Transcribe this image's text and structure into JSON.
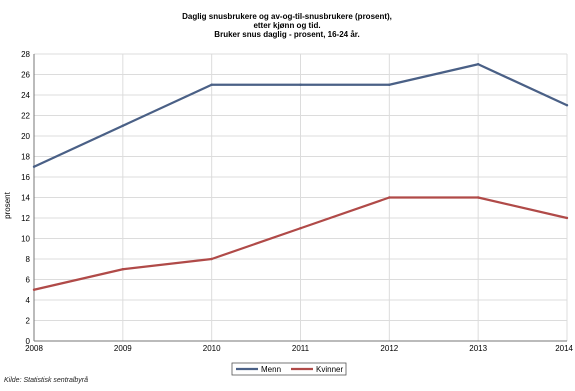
{
  "chart_data": {
    "type": "line",
    "title": [
      "Daglig snusbrukere og av-og-til-snusbrukere (prosent),",
      "etter kjønn og tid.",
      "Bruker snus daglig - prosent, 16-24 år."
    ],
    "xlabel": "",
    "ylabel": "prosent",
    "x": [
      "2008",
      "2009",
      "2010",
      "2011",
      "2012",
      "2013",
      "2014"
    ],
    "yticks": [
      "0",
      "2",
      "4",
      "6",
      "8",
      "10",
      "12",
      "14",
      "16",
      "18",
      "20",
      "22",
      "24",
      "26",
      "28"
    ],
    "ylim": [
      0,
      28
    ],
    "grid": true,
    "legend_position": "bottom",
    "series": [
      {
        "name": "Menn",
        "color": "#4a6086",
        "values": [
          17,
          21,
          25,
          25,
          25,
          27,
          23
        ]
      },
      {
        "name": "Kvinner",
        "color": "#b04a48",
        "values": [
          5,
          7,
          8,
          11,
          14,
          14,
          12
        ]
      }
    ]
  },
  "source": "Kilde: Statistisk sentralbyrå"
}
